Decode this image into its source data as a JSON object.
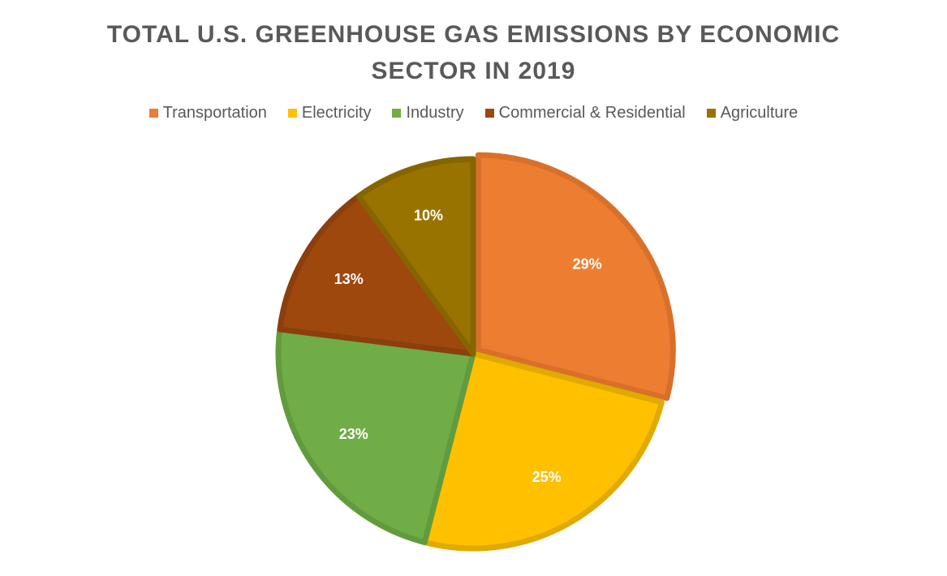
{
  "chart_data": {
    "type": "pie",
    "title_line1": "TOTAL U.S. GREENHOUSE GAS EMISSIONS BY ECONOMIC",
    "title_line2": "SECTOR IN 2019",
    "legend_position": "top",
    "categories": [
      "Transportation",
      "Electricity",
      "Industry",
      "Commercial & Residential",
      "Agriculture"
    ],
    "values": [
      29,
      25,
      23,
      13,
      10
    ],
    "labels": [
      "29%",
      "25%",
      "23%",
      "13%",
      "10%"
    ],
    "colors": [
      "#ED7D31",
      "#FFC000",
      "#70AD47",
      "#9E480E",
      "#997300"
    ],
    "border_colors": [
      "#D9702A",
      "#E0AA00",
      "#629B3E",
      "#8A3F0C",
      "#866500"
    ]
  }
}
